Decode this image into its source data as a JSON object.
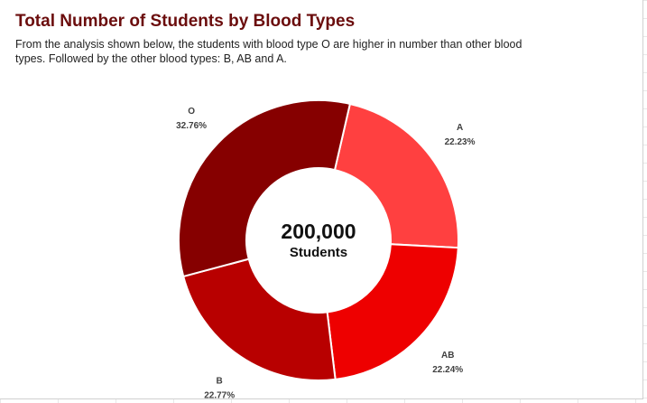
{
  "chart_data": {
    "type": "pie",
    "title": "Total Number of Students by Blood Types",
    "subtitle": "From the analysis shown below, the students with blood type O are higher in number than other blood types. Followed by the other blood types: B, AB and A.",
    "center": {
      "value": "200,000",
      "caption": "Students"
    },
    "slices": [
      {
        "label": "A",
        "value": 22.23,
        "value_text": "22.23%",
        "color": "#ff4040"
      },
      {
        "label": "AB",
        "value": 22.24,
        "value_text": "22.24%",
        "color": "#ee0000"
      },
      {
        "label": "B",
        "value": 22.77,
        "value_text": "22.77%",
        "color": "#b80000"
      },
      {
        "label": "O",
        "value": 32.76,
        "value_text": "32.76%",
        "color": "#860000"
      }
    ],
    "legend": "none"
  }
}
